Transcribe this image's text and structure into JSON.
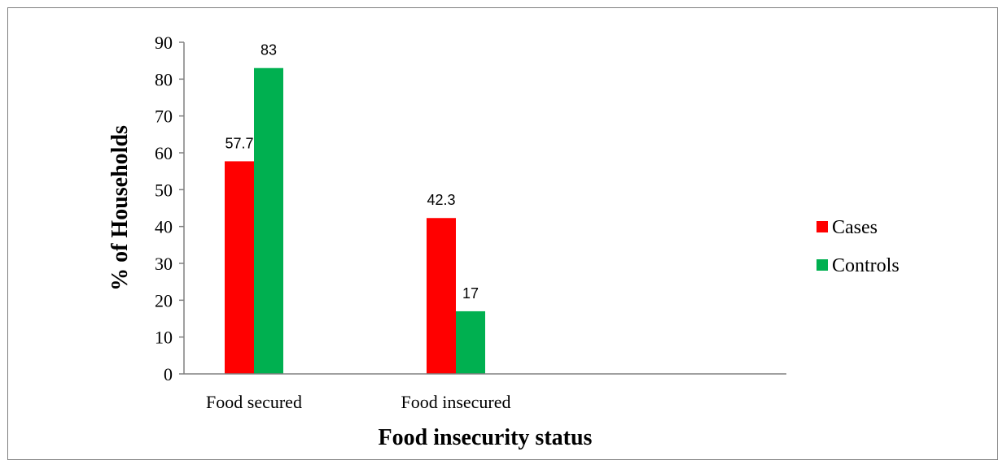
{
  "chart_data": {
    "type": "bar",
    "categories": [
      "Food secured",
      "Food insecured"
    ],
    "series": [
      {
        "name": "Cases",
        "values": [
          57.7,
          42.3
        ],
        "color": "#ff0000"
      },
      {
        "name": "Controls",
        "values": [
          83,
          17
        ],
        "color": "#00b050"
      }
    ],
    "data_labels": [
      [
        "57.7",
        "42.3"
      ],
      [
        "83",
        "17"
      ]
    ],
    "title": "",
    "xlabel": "Food insecurity status",
    "ylabel": "% of Households",
    "ylim": [
      0,
      90
    ],
    "yticks": [
      0,
      10,
      20,
      30,
      40,
      50,
      60,
      70,
      80,
      90
    ],
    "grid": false,
    "legend_position": "right"
  }
}
